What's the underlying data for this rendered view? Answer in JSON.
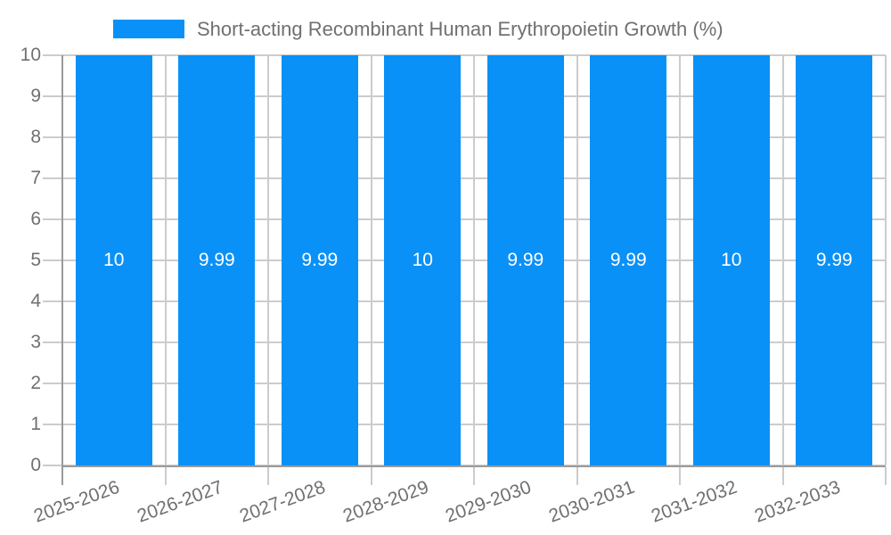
{
  "chart_data": {
    "type": "bar",
    "title": "Short-acting Recombinant Human Erythropoietin Growth (%)",
    "categories": [
      "2025-2026",
      "2026-2027",
      "2027-2028",
      "2028-2029",
      "2029-2030",
      "2030-2031",
      "2031-2032",
      "2032-2033"
    ],
    "values": [
      10,
      9.99,
      9.99,
      10,
      9.99,
      9.99,
      10,
      9.99
    ],
    "value_labels": [
      "10",
      "9.99",
      "9.99",
      "10",
      "9.99",
      "9.99",
      "10",
      "9.99"
    ],
    "xlabel": "",
    "ylabel": "",
    "ylim": [
      0,
      10
    ],
    "ytick_step": 1,
    "grid": true,
    "legend_position": "top",
    "x_label_rotation_deg": -20,
    "colors": {
      "bar": "#0a91f7",
      "grid": "#cccccc",
      "axis": "#9a9a9a",
      "text": "#707070",
      "value_text": "#ffffff"
    }
  }
}
